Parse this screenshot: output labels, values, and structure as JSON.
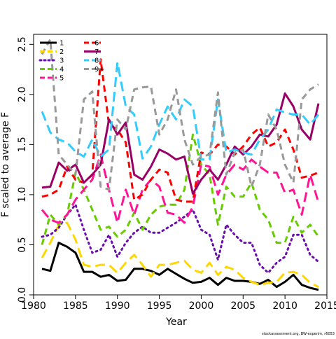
{
  "chart_data": {
    "type": "line",
    "title": "",
    "xlabel": "Year",
    "ylabel": "F scaled to average F",
    "footer": "stockassessment.org, BW-experim, r6053",
    "xlim": [
      1980,
      2015
    ],
    "ylim": [
      0,
      2.6
    ],
    "x_ticks": [
      1980,
      1985,
      1990,
      1995,
      2000,
      2005,
      2010,
      2015
    ],
    "y_ticks": [
      0.0,
      0.5,
      1.0,
      1.5,
      2.0,
      2.5
    ],
    "y_tick_labels": [
      "0.0",
      "0.5",
      "1.0",
      "1.5",
      "2.0",
      "2.5"
    ],
    "grid": false,
    "legend_position": "top-left",
    "x": [
      1981,
      1982,
      1983,
      1984,
      1985,
      1986,
      1987,
      1988,
      1989,
      1990,
      1991,
      1992,
      1993,
      1994,
      1995,
      1996,
      1997,
      1998,
      1999,
      2000,
      2001,
      2002,
      2003,
      2004,
      2005,
      2006,
      2007,
      2008,
      2009,
      2010,
      2011,
      2012,
      2013,
      2014
    ],
    "series": [
      {
        "name": "1",
        "color": "#000000",
        "dash": "solid",
        "values": [
          0.26,
          0.24,
          0.52,
          0.48,
          0.42,
          0.23,
          0.23,
          0.18,
          0.2,
          0.14,
          0.15,
          0.26,
          0.26,
          0.24,
          0.2,
          0.26,
          0.21,
          0.16,
          0.12,
          0.13,
          0.17,
          0.1,
          0.17,
          0.14,
          0.14,
          0.13,
          0.11,
          0.15,
          0.08,
          0.13,
          0.2,
          0.1,
          0.07,
          0.05
        ]
      },
      {
        "name": "2",
        "color": "#ffd700",
        "dash": "longdash",
        "values": [
          0.37,
          0.52,
          0.7,
          0.72,
          0.55,
          0.3,
          0.28,
          0.3,
          0.3,
          0.22,
          0.32,
          0.4,
          0.3,
          0.18,
          0.3,
          0.3,
          0.32,
          0.34,
          0.25,
          0.22,
          0.32,
          0.2,
          0.28,
          0.25,
          0.17,
          0.13,
          0.1,
          0.12,
          0.13,
          0.22,
          0.23,
          0.2,
          0.12,
          0.08
        ]
      },
      {
        "name": "3",
        "color": "#6a0dad",
        "dash": "dotted",
        "values": [
          0.58,
          0.6,
          0.67,
          0.8,
          0.9,
          0.65,
          0.42,
          0.45,
          0.6,
          0.38,
          0.52,
          0.62,
          0.68,
          0.62,
          0.62,
          0.67,
          0.72,
          0.78,
          0.85,
          0.65,
          0.6,
          0.35,
          0.7,
          0.6,
          0.52,
          0.52,
          0.3,
          0.22,
          0.32,
          0.38,
          0.6,
          0.6,
          0.4,
          0.33
        ]
      },
      {
        "name": "4",
        "color": "#66cc00",
        "dash": "dashed",
        "values": [
          0.5,
          0.8,
          0.7,
          0.8,
          1.22,
          1.05,
          0.85,
          0.65,
          0.68,
          0.58,
          0.65,
          0.82,
          0.65,
          0.8,
          0.88,
          0.9,
          0.9,
          1.05,
          1.6,
          1.3,
          1.2,
          0.7,
          1.08,
          0.98,
          0.98,
          1.12,
          0.85,
          0.75,
          0.52,
          0.52,
          0.78,
          0.62,
          0.7,
          0.58
        ]
      },
      {
        "name": "5",
        "color": "#ff1493",
        "dash": "longdash",
        "values": [
          0.85,
          0.75,
          0.72,
          0.8,
          0.95,
          1.05,
          1.15,
          1.4,
          1.05,
          0.72,
          1.05,
          0.8,
          1.05,
          1.15,
          1.08,
          0.82,
          0.8,
          0.72,
          0.88,
          1.3,
          1.28,
          1.0,
          1.2,
          1.3,
          1.25,
          1.35,
          1.28,
          1.22,
          1.22,
          1.02,
          1.05,
          0.8,
          1.2,
          0.92
        ]
      },
      {
        "name": "6",
        "color": "#ff0000",
        "dash": "dashed",
        "values": [
          0.98,
          1.0,
          1.05,
          1.28,
          1.15,
          1.12,
          1.2,
          2.35,
          1.7,
          1.65,
          1.52,
          0.95,
          1.0,
          1.15,
          1.25,
          1.22,
          0.95,
          0.93,
          0.93,
          1.42,
          1.4,
          1.5,
          1.48,
          1.4,
          1.48,
          1.6,
          1.67,
          1.48,
          1.52,
          1.65,
          1.45,
          1.17,
          1.19,
          1.22
        ]
      },
      {
        "name": "7",
        "color": "#990066",
        "dash": "solid",
        "values": [
          1.07,
          1.08,
          1.32,
          1.24,
          1.3,
          1.12,
          1.2,
          1.3,
          1.75,
          1.6,
          1.72,
          1.2,
          1.15,
          1.28,
          1.45,
          1.41,
          1.35,
          1.38,
          1.01,
          1.15,
          1.25,
          1.15,
          1.3,
          1.48,
          1.4,
          1.48,
          1.6,
          1.58,
          1.7,
          2.01,
          1.88,
          1.65,
          1.55,
          1.91
        ]
      },
      {
        "name": "8",
        "color": "#33ccff",
        "dash": "longdash",
        "values": [
          1.83,
          1.62,
          1.55,
          1.52,
          1.43,
          1.38,
          1.55,
          1.38,
          1.45,
          2.32,
          1.88,
          1.8,
          1.36,
          1.48,
          1.7,
          1.88,
          1.75,
          1.95,
          1.88,
          1.35,
          1.35,
          1.95,
          1.42,
          1.45,
          1.42,
          1.4,
          1.55,
          1.65,
          1.85,
          1.82,
          1.8,
          1.8,
          1.7,
          1.8
        ]
      },
      {
        "name": "9+",
        "color": "#999999",
        "dash": "dashed",
        "values": [
          2.4,
          2.55,
          1.4,
          1.3,
          1.2,
          1.95,
          2.03,
          1.08,
          1.05,
          1.75,
          1.65,
          2.05,
          2.07,
          2.08,
          1.6,
          1.75,
          2.05,
          1.55,
          1.3,
          1.38,
          1.4,
          2.02,
          1.2,
          1.42,
          1.45,
          1.08,
          1.3,
          1.8,
          1.65,
          1.3,
          1.12,
          1.95,
          2.05,
          2.1
        ]
      }
    ]
  }
}
